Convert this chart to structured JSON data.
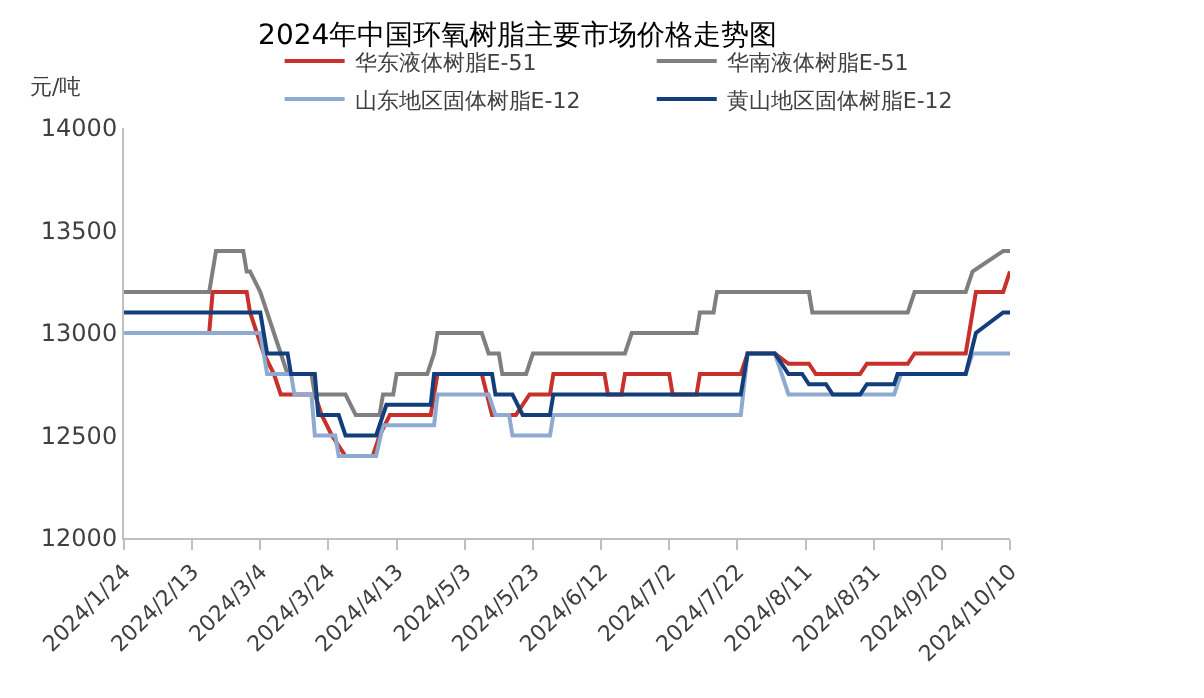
{
  "chart_data": {
    "type": "line",
    "title": "2024年中国环氧树脂主要市场价格走势图",
    "ylabel": "元/吨",
    "legend": "top",
    "marker": "none",
    "line_style": "solid",
    "xlim": [
      "2024-01-24",
      "2024-10-10"
    ],
    "xticks": [
      {
        "value": "2024-01-24",
        "label": "2024/1/24"
      },
      {
        "value": "2024-02-13",
        "label": "2024/2/13"
      },
      {
        "value": "2024-03-04",
        "label": "2024/3/4"
      },
      {
        "value": "2024-03-24",
        "label": "2024/3/24"
      },
      {
        "value": "2024-04-13",
        "label": "2024/4/13"
      },
      {
        "value": "2024-05-03",
        "label": "2024/5/3"
      },
      {
        "value": "2024-05-23",
        "label": "2024/5/23"
      },
      {
        "value": "2024-06-12",
        "label": "2024/6/12"
      },
      {
        "value": "2024-07-02",
        "label": "2024/7/2"
      },
      {
        "value": "2024-07-22",
        "label": "2024/7/22"
      },
      {
        "value": "2024-08-11",
        "label": "2024/8/11"
      },
      {
        "value": "2024-08-31",
        "label": "2024/8/31"
      },
      {
        "value": "2024-09-20",
        "label": "2024/9/20"
      },
      {
        "value": "2024-10-10",
        "label": "2024/10/10"
      }
    ],
    "ylim": [
      12000,
      14000
    ],
    "yticks": [
      12000,
      12500,
      13000,
      13500,
      14000
    ],
    "series": [
      {
        "name": "华东液体树脂E-51",
        "color": "#c8312b",
        "x": [
          "2024-02-18",
          "2024-02-19",
          "2024-02-29",
          "2024-03-01",
          "2024-03-03",
          "2024-03-05",
          "2024-03-08",
          "2024-03-10",
          "2024-03-20",
          "2024-03-22",
          "2024-03-25",
          "2024-03-29",
          "2024-04-06",
          "2024-04-08",
          "2024-04-11",
          "2024-04-23",
          "2024-04-25",
          "2024-05-08",
          "2024-05-11",
          "2024-05-18",
          "2024-05-22",
          "2024-05-28",
          "2024-05-29",
          "2024-06-13",
          "2024-06-14",
          "2024-06-18",
          "2024-06-19",
          "2024-07-02",
          "2024-07-03",
          "2024-07-10",
          "2024-07-11",
          "2024-07-23",
          "2024-07-25",
          "2024-08-02",
          "2024-08-06",
          "2024-08-12",
          "2024-08-14",
          "2024-08-27",
          "2024-08-29",
          "2024-09-10",
          "2024-09-12",
          "2024-09-27",
          "2024-09-30",
          "2024-10-08",
          "2024-10-10"
        ],
        "values": [
          13000,
          13200,
          13200,
          13100,
          13000,
          12900,
          12800,
          12700,
          12700,
          12600,
          12500,
          12400,
          12400,
          12500,
          12600,
          12600,
          12800,
          12800,
          12600,
          12600,
          12700,
          12700,
          12800,
          12800,
          12700,
          12700,
          12800,
          12800,
          12700,
          12700,
          12800,
          12800,
          12900,
          12900,
          12850,
          12850,
          12800,
          12800,
          12850,
          12850,
          12900,
          12900,
          13200,
          13200,
          13300
        ]
      },
      {
        "name": "华南液体树脂E-51",
        "color": "#7f7f7f",
        "x": [
          "2024-01-24",
          "2024-02-18",
          "2024-02-20",
          "2024-02-28",
          "2024-02-29",
          "2024-03-01",
          "2024-03-04",
          "2024-03-10",
          "2024-03-12",
          "2024-03-19",
          "2024-03-20",
          "2024-03-29",
          "2024-04-01",
          "2024-04-08",
          "2024-04-09",
          "2024-04-12",
          "2024-04-13",
          "2024-04-22",
          "2024-04-24",
          "2024-04-25",
          "2024-05-08",
          "2024-05-10",
          "2024-05-13",
          "2024-05-14",
          "2024-05-21",
          "2024-05-23",
          "2024-06-19",
          "2024-06-21",
          "2024-07-10",
          "2024-07-11",
          "2024-07-15",
          "2024-07-16",
          "2024-08-12",
          "2024-08-13",
          "2024-09-10",
          "2024-09-12",
          "2024-09-27",
          "2024-09-29",
          "2024-10-08",
          "2024-10-10"
        ],
        "values": [
          13200,
          13200,
          13400,
          13400,
          13300,
          13300,
          13200,
          12900,
          12800,
          12800,
          12700,
          12700,
          12600,
          12600,
          12700,
          12700,
          12800,
          12800,
          12900,
          13000,
          13000,
          12900,
          12900,
          12800,
          12800,
          12900,
          12900,
          13000,
          13000,
          13100,
          13100,
          13200,
          13200,
          13100,
          13100,
          13200,
          13200,
          13300,
          13400,
          13400
        ]
      },
      {
        "name": "山东地区固体树脂E-12",
        "color": "#8faad0",
        "x": [
          "2024-01-24",
          "2024-03-04",
          "2024-03-06",
          "2024-03-13",
          "2024-03-14",
          "2024-03-19",
          "2024-03-20",
          "2024-03-26",
          "2024-03-27",
          "2024-04-07",
          "2024-04-09",
          "2024-04-24",
          "2024-04-25",
          "2024-05-10",
          "2024-05-12",
          "2024-05-16",
          "2024-05-17",
          "2024-05-28",
          "2024-05-29",
          "2024-07-23",
          "2024-07-25",
          "2024-08-02",
          "2024-08-06",
          "2024-09-06",
          "2024-09-08",
          "2024-09-27",
          "2024-09-29",
          "2024-10-10"
        ],
        "values": [
          13000,
          13000,
          12800,
          12800,
          12700,
          12700,
          12500,
          12500,
          12400,
          12400,
          12550,
          12550,
          12700,
          12700,
          12600,
          12600,
          12500,
          12500,
          12600,
          12600,
          12900,
          12900,
          12700,
          12700,
          12800,
          12800,
          12900,
          12900
        ]
      },
      {
        "name": "黄山地区固体树脂E-12",
        "color": "#123f7c",
        "x": [
          "2024-01-24",
          "2024-03-04",
          "2024-03-06",
          "2024-03-12",
          "2024-03-13",
          "2024-03-20",
          "2024-03-21",
          "2024-03-27",
          "2024-03-29",
          "2024-04-07",
          "2024-04-10",
          "2024-04-23",
          "2024-04-24",
          "2024-05-11",
          "2024-05-12",
          "2024-05-17",
          "2024-05-20",
          "2024-05-28",
          "2024-05-29",
          "2024-07-23",
          "2024-07-25",
          "2024-08-02",
          "2024-08-06",
          "2024-08-10",
          "2024-08-12",
          "2024-08-17",
          "2024-08-19",
          "2024-08-27",
          "2024-08-29",
          "2024-09-06",
          "2024-09-07",
          "2024-09-27",
          "2024-09-30",
          "2024-10-08",
          "2024-10-10"
        ],
        "values": [
          13100,
          13100,
          12900,
          12900,
          12800,
          12800,
          12600,
          12600,
          12500,
          12500,
          12650,
          12650,
          12800,
          12800,
          12700,
          12700,
          12600,
          12600,
          12700,
          12700,
          12900,
          12900,
          12800,
          12800,
          12750,
          12750,
          12700,
          12700,
          12750,
          12750,
          12800,
          12800,
          13000,
          13100,
          13100
        ]
      }
    ]
  }
}
